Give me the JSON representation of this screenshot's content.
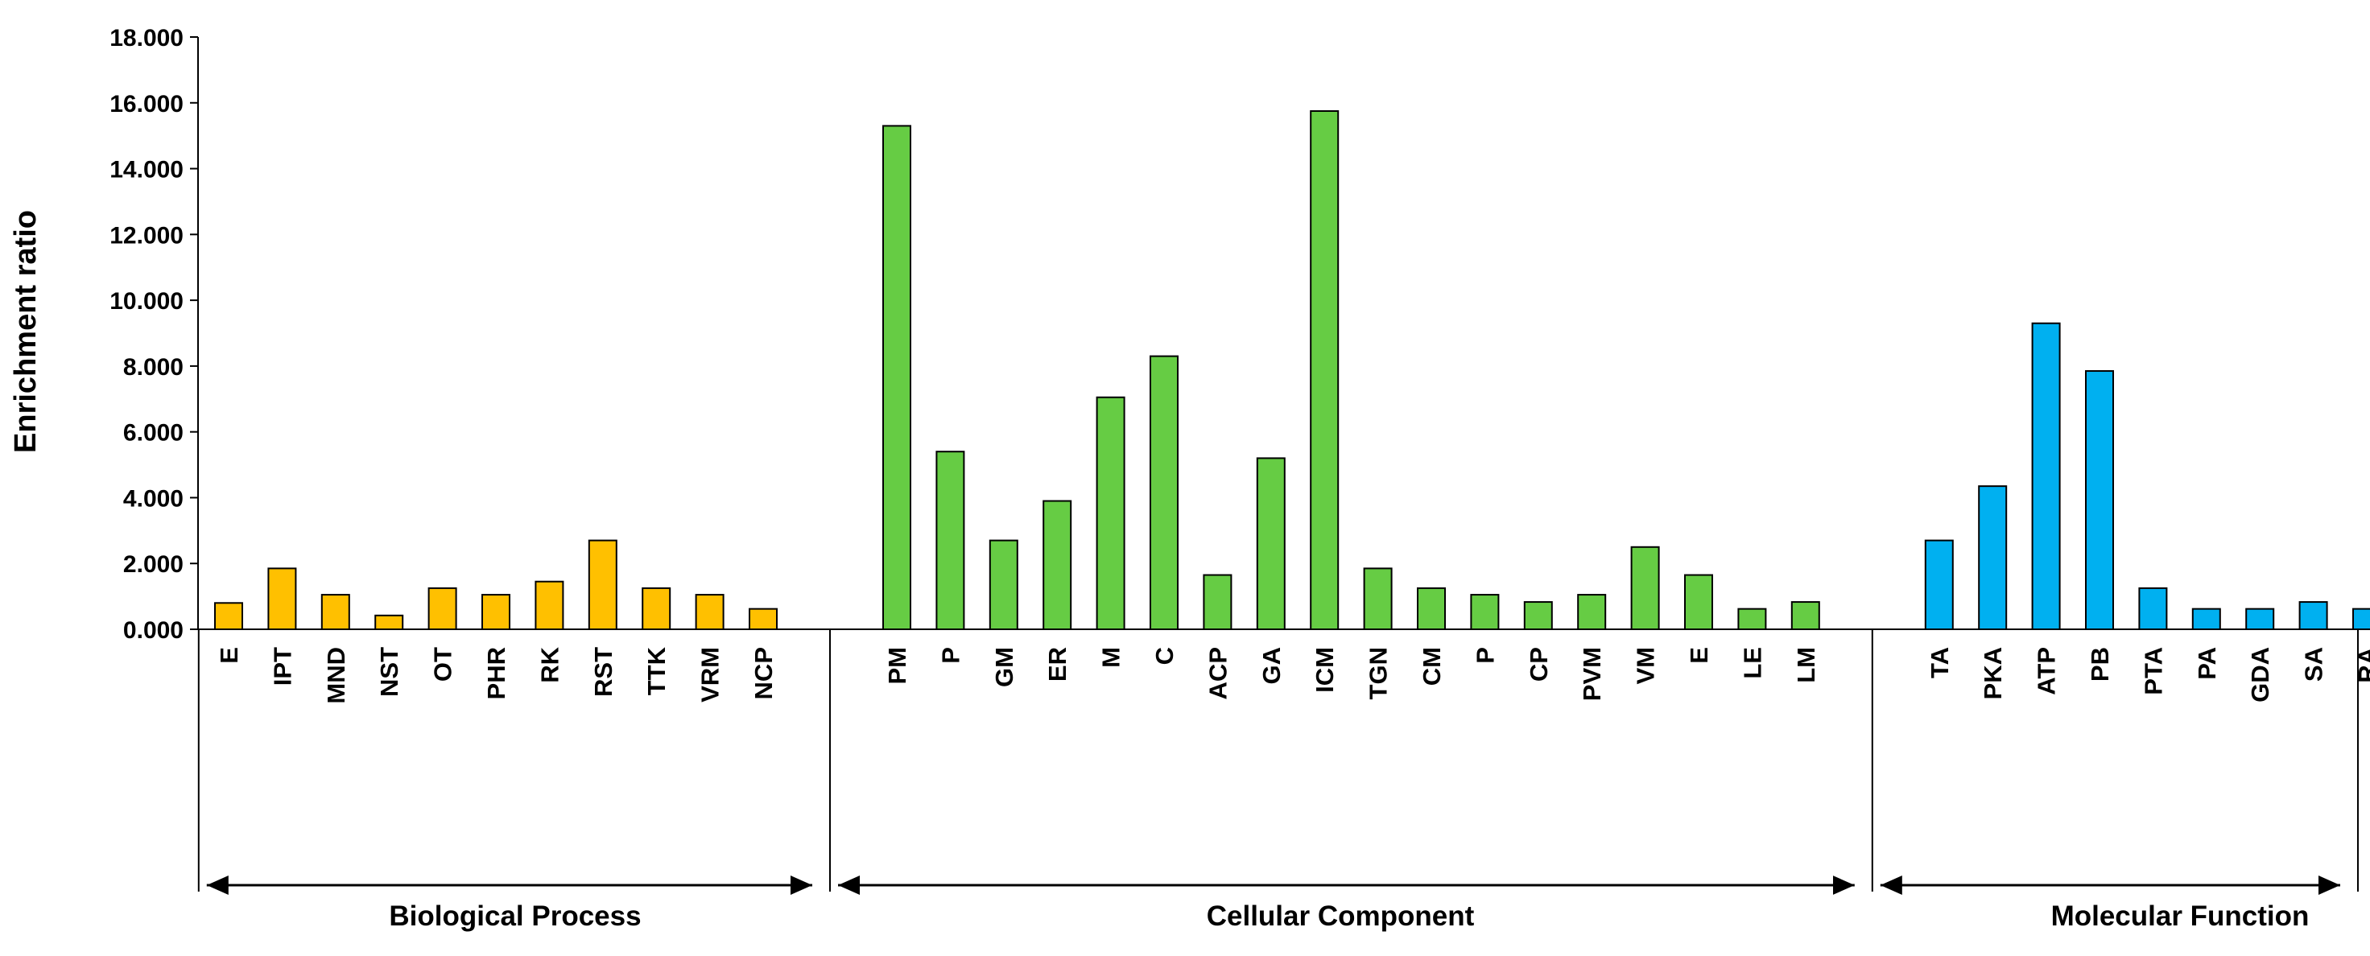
{
  "chart_data": {
    "type": "bar",
    "ylabel": "Enrichment ratio",
    "ylim": [
      0,
      18
    ],
    "yticks": [
      "0.000",
      "2.000",
      "4.000",
      "6.000",
      "8.000",
      "10.000",
      "12.000",
      "14.000",
      "16.000",
      "18.000"
    ],
    "grid": false,
    "groups": [
      {
        "name": "Biological Process",
        "color": "#FFC000",
        "categories": [
          "E",
          "IPT",
          "MND",
          "NST",
          "OT",
          "PHR",
          "RK",
          "RST",
          "TTK",
          "VRM",
          "NCP"
        ],
        "values": [
          0.8,
          1.85,
          1.05,
          0.42,
          1.25,
          1.05,
          1.45,
          2.7,
          1.25,
          1.05,
          0.62
        ]
      },
      {
        "name": "Cellular Component",
        "color": "#66CC44",
        "categories": [
          "PM",
          "P",
          "GM",
          "ER",
          "M",
          "C",
          "ACP",
          "GA",
          "ICM",
          "TGN",
          "CM",
          "P",
          "CP",
          "PVM",
          "VM",
          "E",
          "LE",
          "LM"
        ],
        "values": [
          15.3,
          5.4,
          2.7,
          3.9,
          7.05,
          8.3,
          1.65,
          5.2,
          15.75,
          1.85,
          1.25,
          1.05,
          0.83,
          1.05,
          2.5,
          1.65,
          0.62,
          0.83
        ]
      },
      {
        "name": "Molecular Function",
        "color": "#00B0F0",
        "categories": [
          "TA",
          "PKA",
          "ATP",
          "PB",
          "PTA",
          "PA",
          "GDA",
          "SA",
          "RA"
        ],
        "values": [
          2.7,
          4.35,
          9.3,
          7.85,
          1.25,
          0.62,
          0.62,
          0.83,
          0.62
        ]
      }
    ]
  }
}
